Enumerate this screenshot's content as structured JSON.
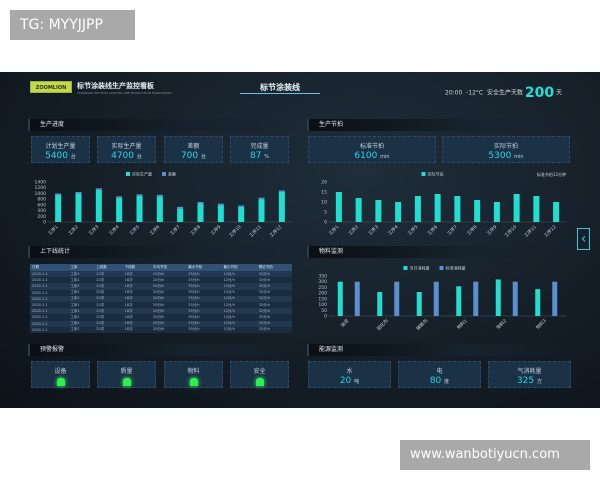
{
  "overlay": {
    "tag": "TG: MYYJJPP",
    "url": "www.wanbotiyucn.com"
  },
  "header": {
    "logo": "ZOOMLION",
    "title": "标节涂装线生产监控看板",
    "subtitle": "STANDARD SECTION COATING LINE PRODUCTION MONITORING",
    "center_title": "标节涂装线",
    "time": "20:00",
    "temperature": "-12°C",
    "safe_days_label": "安全生产天数",
    "safe_days": "200",
    "safe_days_unit": "天"
  },
  "progress": {
    "title": "生产进度",
    "cards": [
      {
        "label": "计划生产量",
        "value": "5400",
        "unit": "台"
      },
      {
        "label": "实际生产量",
        "value": "4700",
        "unit": "台"
      },
      {
        "label": "差额",
        "value": "700",
        "unit": "台"
      },
      {
        "label": "完成量",
        "value": "87",
        "unit": "%"
      }
    ]
  },
  "beat": {
    "title": "生产节拍",
    "cards": [
      {
        "label": "标准节拍",
        "value": "6100",
        "unit": "min"
      },
      {
        "label": "实际节拍",
        "value": "5300",
        "unit": "min"
      }
    ]
  },
  "table": {
    "title": "上下线统计",
    "headers": [
      "日期",
      "工序",
      "上线数",
      "下线数",
      "平均节拍",
      "最大节拍",
      "最小节拍",
      "理论节拍"
    ],
    "rows": [
      [
        "2020.1.1",
        "工序1",
        "20次",
        "18次",
        "20分/h",
        "35分/h",
        "12分/h",
        "32分/h"
      ],
      [
        "2020.1.1",
        "工序1",
        "20次",
        "18次",
        "20分/h",
        "35分/h",
        "12分/h",
        "32分/h"
      ],
      [
        "2020.1.1",
        "工序1",
        "20次",
        "18次",
        "20分/h",
        "35分/h",
        "12分/h",
        "32分/h"
      ],
      [
        "2020.1.1",
        "工序1",
        "20次",
        "18次",
        "20分/h",
        "35分/h",
        "12分/h",
        "32分/h"
      ],
      [
        "2020.1.1",
        "工序1",
        "20次",
        "18次",
        "20分/h",
        "35分/h",
        "12分/h",
        "32分/h"
      ],
      [
        "2020.1.1",
        "工序1",
        "20次",
        "18次",
        "20分/h",
        "35分/h",
        "12分/h",
        "32分/h"
      ],
      [
        "2020.1.1",
        "工序1",
        "20次",
        "18次",
        "20分/h",
        "35分/h",
        "12分/h",
        "32分/h"
      ],
      [
        "2020.1.1",
        "工序1",
        "20次",
        "18次",
        "20分/h",
        "35分/h",
        "12分/h",
        "32分/h"
      ],
      [
        "2020.1.1",
        "工序1",
        "20次",
        "18次",
        "20分/h",
        "35分/h",
        "12分/h",
        "32分/h"
      ],
      [
        "2020.1.1",
        "工序1",
        "20次",
        "18次",
        "20分/h",
        "35分/h",
        "12分/h",
        "32分/h"
      ]
    ]
  },
  "alarm": {
    "title": "预警报警",
    "items": [
      "设备",
      "质量",
      "物料",
      "安全"
    ],
    "status_color": "#2ef04a"
  },
  "energy": {
    "title": "能源监测",
    "cards": [
      {
        "label": "水",
        "value": "20",
        "unit": "吨"
      },
      {
        "label": "电",
        "value": "80",
        "unit": "度"
      },
      {
        "label": "气消耗量",
        "value": "325",
        "unit": "方"
      }
    ]
  },
  "material": {
    "title": "物料监测"
  },
  "side_button": {
    "icon": "chevron-left-icon"
  },
  "chart_data": [
    {
      "type": "bar",
      "stacked": true,
      "categories": [
        "工序1",
        "工序2",
        "工序3",
        "工序4",
        "工序5",
        "工序6",
        "工序7",
        "工序8",
        "工序9",
        "工序10",
        "工序11",
        "工序12"
      ],
      "series": [
        {
          "name": "实际生产量",
          "values": [
            950,
            1000,
            1130,
            850,
            920,
            900,
            480,
            650,
            590,
            530,
            800,
            1050
          ],
          "color": "#1fe0d0"
        },
        {
          "name": "差额",
          "values": [
            50,
            50,
            50,
            50,
            50,
            50,
            50,
            50,
            50,
            50,
            50,
            50
          ],
          "color": "#5a8fd0"
        }
      ],
      "yticks": [
        0,
        200,
        400,
        600,
        800,
        1000,
        1200,
        1400
      ],
      "ylim": [
        0,
        1400
      ],
      "legend": "top"
    },
    {
      "type": "bar",
      "categories": [
        "工序1",
        "工序2",
        "工序3",
        "工序4",
        "工序5",
        "工序6",
        "工序7",
        "工序8",
        "工序9",
        "工序10",
        "工序11",
        "工序12"
      ],
      "series": [
        {
          "name": "实际节拍",
          "values": [
            15,
            12,
            11,
            10,
            13,
            14,
            13,
            11,
            10,
            14,
            13,
            10
          ],
          "color": "#1fe0d0"
        }
      ],
      "annotation": "标准节拍12分钟",
      "yticks": [
        0,
        5,
        10,
        15,
        20
      ],
      "ylim": [
        0,
        20
      ],
      "legend": "top"
    },
    {
      "type": "bar",
      "categories": [
        "油漆",
        "固化剂",
        "稀释剂",
        "物料1",
        "物料2",
        "物料3"
      ],
      "series": [
        {
          "name": "当日消耗量",
          "values": [
            300,
            210,
            210,
            260,
            320,
            235
          ],
          "color": "#1fe0d0"
        },
        {
          "name": "标准消耗量",
          "values": [
            300,
            300,
            300,
            300,
            300,
            300
          ],
          "color": "#5a8fd0"
        }
      ],
      "yticks": [
        0,
        50,
        100,
        150,
        200,
        250,
        300,
        350
      ],
      "ylim": [
        0,
        350
      ],
      "legend": "top"
    }
  ]
}
